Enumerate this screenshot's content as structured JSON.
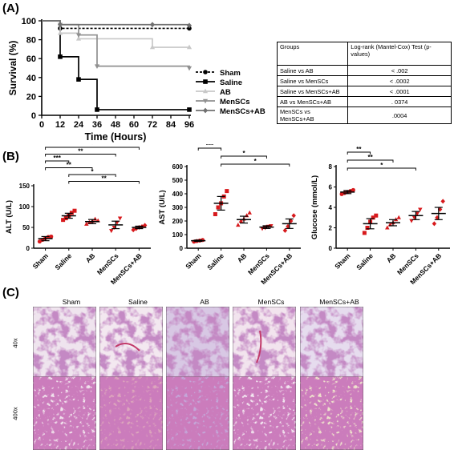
{
  "panel_letters": {
    "a": "(A)",
    "b": "(B)",
    "c": "(C)"
  },
  "chart_data": [
    {
      "id": "survival",
      "type": "line",
      "xlabel": "Time (Hours)",
      "ylabel": "Survival (%)",
      "xlim": [
        0,
        96
      ],
      "ylim": [
        0,
        100
      ],
      "xticks": [
        0,
        12,
        24,
        36,
        48,
        60,
        72,
        84,
        96
      ],
      "yticks": [
        0,
        20,
        40,
        60,
        80,
        100
      ],
      "legend_position": "right",
      "series": [
        {
          "name": "Sham",
          "color": "#000000",
          "dash": "3,2",
          "marker": "circle",
          "x": [
            0,
            12,
            96
          ],
          "y": [
            100,
            92,
            92
          ]
        },
        {
          "name": "Saline",
          "color": "#000000",
          "dash": "",
          "marker": "square",
          "x": [
            0,
            12,
            24,
            36,
            96
          ],
          "y": [
            100,
            62,
            38,
            6,
            6
          ]
        },
        {
          "name": "AB",
          "color": "#c8c8c8",
          "dash": "",
          "marker": "triangle-up",
          "x": [
            0,
            12,
            24,
            72,
            96
          ],
          "y": [
            100,
            87,
            81,
            72,
            72
          ]
        },
        {
          "name": "MenSCs",
          "color": "#909090",
          "dash": "",
          "marker": "triangle-down",
          "x": [
            0,
            12,
            24,
            36,
            96
          ],
          "y": [
            100,
            96,
            85,
            52,
            50
          ]
        },
        {
          "name": "MenSCs+AB",
          "color": "#707070",
          "dash": "",
          "marker": "diamond",
          "x": [
            0,
            12,
            72,
            96
          ],
          "y": [
            100,
            96,
            96,
            95
          ]
        }
      ]
    },
    {
      "id": "alt",
      "type": "scatter",
      "ylabel": "ALT (U/L)",
      "ylim": [
        0,
        150
      ],
      "yticks": [
        0,
        50,
        100,
        150
      ],
      "categories": [
        "Sham",
        "Saline",
        "AB",
        "MenSCs",
        "MenSCs+AB"
      ],
      "groups": [
        {
          "name": "Sham",
          "marker": "circle",
          "color": "#d7191c",
          "mean": 23,
          "sem": 5,
          "points": [
            16,
            20,
            24,
            27,
            28
          ]
        },
        {
          "name": "Saline",
          "marker": "square",
          "color": "#d7191c",
          "mean": 78,
          "sem": 6,
          "points": [
            68,
            72,
            78,
            85,
            90
          ]
        },
        {
          "name": "AB",
          "marker": "triangle-up",
          "color": "#d7191c",
          "mean": 64,
          "sem": 5,
          "points": [
            58,
            62,
            65,
            70,
            66
          ]
        },
        {
          "name": "MenSCs",
          "marker": "triangle-down",
          "color": "#d7191c",
          "mean": 56,
          "sem": 9,
          "points": [
            42,
            50,
            62,
            72
          ]
        },
        {
          "name": "MenSCs+AB",
          "marker": "diamond",
          "color": "#d7191c",
          "mean": 50,
          "sem": 3,
          "points": [
            44,
            47,
            50,
            52,
            55
          ]
        }
      ],
      "significance": [
        {
          "from": 0,
          "to": 4,
          "label": "*"
        },
        {
          "from": 0,
          "to": 3,
          "label": "**"
        },
        {
          "from": 0,
          "to": 1,
          "label": "***"
        },
        {
          "from": 0,
          "to": 2,
          "label": "**"
        },
        {
          "from": 1,
          "to": 3,
          "label": "*"
        },
        {
          "from": 1,
          "to": 4,
          "label": "**"
        }
      ]
    },
    {
      "id": "ast",
      "type": "scatter",
      "ylabel": "AST (U/L)",
      "ylim": [
        0,
        600
      ],
      "yticks": [
        0,
        100,
        200,
        300,
        400,
        500,
        600
      ],
      "categories": [
        "Sham",
        "Saline",
        "AB",
        "MenSCs",
        "MenSCs+AB"
      ],
      "groups": [
        {
          "name": "Sham",
          "marker": "circle",
          "color": "#d7191c",
          "mean": 55,
          "sem": 5,
          "points": [
            48,
            52,
            56,
            60
          ]
        },
        {
          "name": "Saline",
          "marker": "square",
          "color": "#d7191c",
          "mean": 330,
          "sem": 50,
          "points": [
            250,
            300,
            330,
            380,
            420
          ]
        },
        {
          "name": "AB",
          "marker": "triangle-up",
          "color": "#d7191c",
          "mean": 210,
          "sem": 25,
          "points": [
            170,
            200,
            215,
            240,
            260
          ]
        },
        {
          "name": "MenSCs",
          "marker": "triangle-down",
          "color": "#d7191c",
          "mean": 155,
          "sem": 10,
          "points": [
            145,
            150,
            160,
            165
          ]
        },
        {
          "name": "MenSCs+AB",
          "marker": "diamond",
          "color": "#d7191c",
          "mean": 180,
          "sem": 35,
          "points": [
            130,
            160,
            200,
            240
          ]
        }
      ],
      "significance": [
        {
          "from": 0,
          "to": 1,
          "label": "***"
        },
        {
          "from": 1,
          "to": 3,
          "label": "*"
        },
        {
          "from": 1,
          "to": 4,
          "label": "*"
        }
      ]
    },
    {
      "id": "glucose",
      "type": "scatter",
      "ylabel": "Glucose (mmol/L)",
      "ylim": [
        0,
        8
      ],
      "yticks": [
        0,
        2,
        4,
        6,
        8
      ],
      "categories": [
        "Sham",
        "Saline",
        "AB",
        "MenSCs",
        "MenSCs+AB"
      ],
      "groups": [
        {
          "name": "Sham",
          "marker": "circle",
          "color": "#d7191c",
          "mean": 5.5,
          "sem": 0.15,
          "points": [
            5.3,
            5.4,
            5.5,
            5.6,
            5.7
          ]
        },
        {
          "name": "Saline",
          "marker": "square",
          "color": "#d7191c",
          "mean": 2.4,
          "sem": 0.5,
          "points": [
            1.5,
            2.0,
            2.6,
            3.0,
            3.2
          ]
        },
        {
          "name": "AB",
          "marker": "triangle-up",
          "color": "#d7191c",
          "mean": 2.5,
          "sem": 0.3,
          "points": [
            2.0,
            2.3,
            2.5,
            2.8,
            3.0
          ]
        },
        {
          "name": "MenSCs",
          "marker": "triangle-down",
          "color": "#d7191c",
          "mean": 3.2,
          "sem": 0.4,
          "points": [
            2.7,
            3.0,
            3.4,
            3.8
          ]
        },
        {
          "name": "MenSCs+AB",
          "marker": "diamond",
          "color": "#d7191c",
          "mean": 3.4,
          "sem": 0.6,
          "points": [
            2.4,
            3.0,
            3.8,
            4.6
          ]
        }
      ],
      "significance": [
        {
          "from": 0,
          "to": 1,
          "label": "**"
        },
        {
          "from": 0,
          "to": 2,
          "label": "**"
        },
        {
          "from": 0,
          "to": 3,
          "label": "*"
        }
      ]
    }
  ],
  "logrank_table": {
    "headers": [
      "Groups",
      "Log-rank (Mantel-Cox) Test (p-values)"
    ],
    "rows": [
      [
        "Saline vs AB",
        "< .002"
      ],
      [
        "Saline vs MenSCs",
        "< .0002"
      ],
      [
        "Saline vs MenSCs+AB",
        "< .0001"
      ],
      [
        "AB vs MenSCs+AB",
        ". 0374"
      ],
      [
        "MenSCs vs MenSCs+AB",
        ".0004"
      ]
    ]
  },
  "histology": {
    "columns": [
      "Sham",
      "Saline",
      "AB",
      "MenSCs",
      "MenSCs+AB"
    ],
    "rows": [
      "40x",
      "400x"
    ]
  }
}
